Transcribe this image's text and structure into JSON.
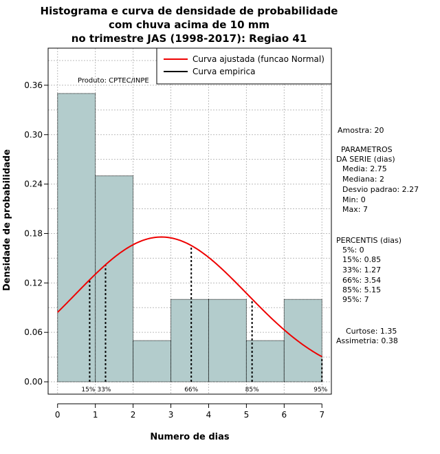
{
  "chart_data": {
    "type": "bar",
    "title_lines": [
      "Histograma e curva de densidade de probabilidade",
      "com chuva acima de 10 mm",
      "no trimestre JAS (1998-2017): Regiao 41"
    ],
    "xlabel": "Numero de dias",
    "ylabel": "Densidade de probabilidade",
    "xlim": [
      -0.25,
      7.25
    ],
    "ylim": [
      -0.015,
      0.405
    ],
    "xticks": [
      "0",
      "1",
      "2",
      "3",
      "4",
      "5",
      "6",
      "7"
    ],
    "yticks": [
      "0.00",
      "0.06",
      "0.12",
      "0.18",
      "0.24",
      "0.30",
      "0.36"
    ],
    "bins": [
      [
        0,
        1
      ],
      [
        1,
        2
      ],
      [
        2,
        3
      ],
      [
        3,
        4
      ],
      [
        4,
        5
      ],
      [
        5,
        6
      ],
      [
        6,
        7
      ]
    ],
    "values": [
      0.35,
      0.25,
      0.05,
      0.1,
      0.1,
      0.05,
      0.1
    ],
    "bar_color": "#b3cccc",
    "fit_curve": {
      "name": "Curva ajustada (funcao Normal)",
      "mean": 2.75,
      "sd": 2.27,
      "color": "#ee0000"
    },
    "empirical_curve": {
      "name": "Curva empirica",
      "color": "#000000"
    },
    "percentile_markers": [
      {
        "label": "15%",
        "value": 0.85
      },
      {
        "label": "33%",
        "value": 1.27
      },
      {
        "label": "66%",
        "value": 3.54
      },
      {
        "label": "85%",
        "value": 5.15
      },
      {
        "label": "95%",
        "value": 7
      }
    ],
    "product_label": "Produto: CPTEC/INPE",
    "grid": true,
    "legend_position": "top-right"
  },
  "stats": {
    "amostra": "Amostra: 20",
    "parametros_title_1": "PARAMETROS",
    "parametros_title_2": "DA SERIE (dias)",
    "media": "Media: 2.75",
    "mediana": "Mediana: 2",
    "desvio": "Desvio padrao: 2.27",
    "min": "Min: 0",
    "max": "Max: 7",
    "percentis_title": "PERCENTIS (dias)",
    "p5": "5%: 0",
    "p15": "15%: 0.85",
    "p33": "33%: 1.27",
    "p66": "66%: 3.54",
    "p85": "85%: 5.15",
    "p95": "95%: 7",
    "curtose": "Curtose: 1.35",
    "assimetria": "Assimetria: 0.38"
  }
}
